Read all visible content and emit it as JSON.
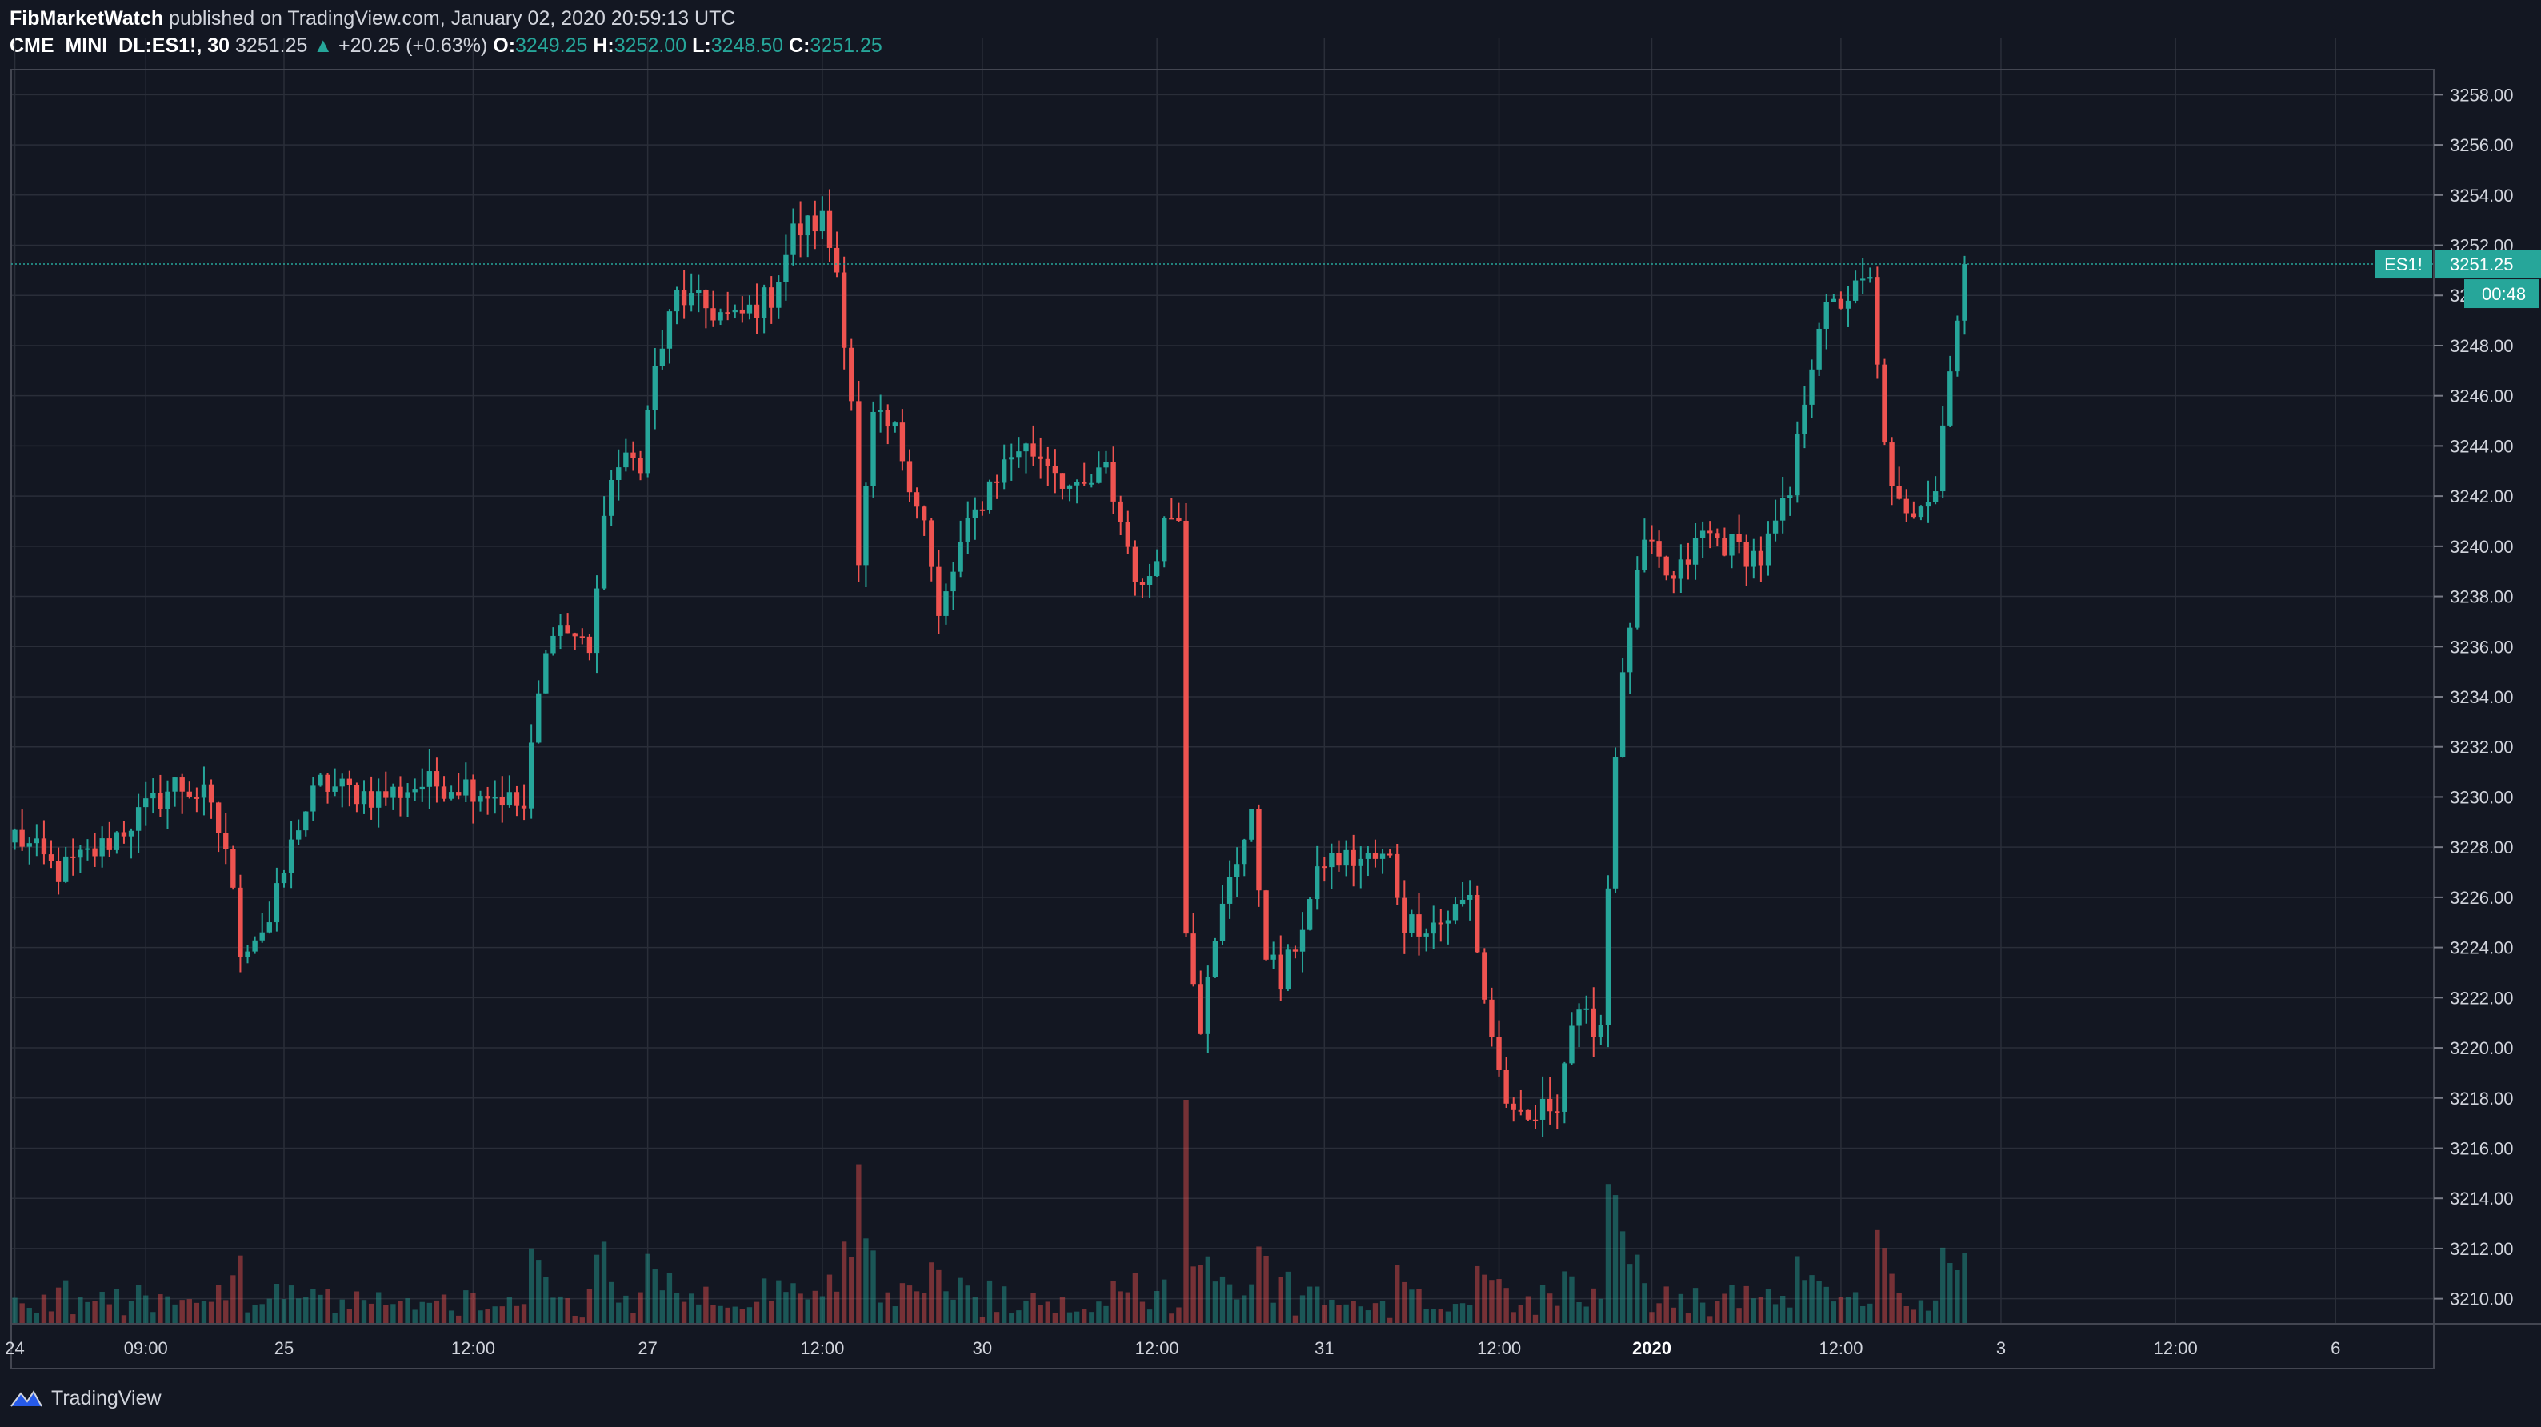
{
  "header": {
    "publisher": "FibMarketWatch",
    "published_text": "published on TradingView.com, January 02, 2020 20:59:13 UTC",
    "symbol": "CME_MINI_DL:ES1!, 30",
    "last": "3251.25",
    "change": "+20.25 (+0.63%)",
    "open_label": "O:",
    "open": "3249.25",
    "high_label": "H:",
    "high": "3252.00",
    "low_label": "L:",
    "low": "3248.50",
    "close_label": "C:",
    "close": "3251.25"
  },
  "footer": {
    "brand": "TradingView"
  },
  "colors": {
    "background": "#131722",
    "up": "#26a69a",
    "down": "#ef5350",
    "grid": "#2a2e39"
  },
  "chart_data": {
    "type": "candlestick",
    "symbol": "ES1!",
    "interval": "30",
    "price_scale": {
      "min": 3209,
      "max": 3259,
      "ticks": [
        "3258.00",
        "3256.00",
        "3254.00",
        "3252.00",
        "3250.00",
        "3248.00",
        "3246.00",
        "3244.00",
        "3242.00",
        "3240.00",
        "3238.00",
        "3236.00",
        "3234.00",
        "3232.00",
        "3230.00",
        "3228.00",
        "3226.00",
        "3224.00",
        "3222.00",
        "3220.00",
        "3218.00",
        "3216.00",
        "3214.00",
        "3212.00",
        "3210.00"
      ]
    },
    "time_ticks": [
      {
        "label": "24",
        "bar": 0
      },
      {
        "label": "09:00",
        "bar": 18
      },
      {
        "label": "25",
        "bar": 37
      },
      {
        "label": "12:00",
        "bar": 63
      },
      {
        "label": "27",
        "bar": 87
      },
      {
        "label": "12:00",
        "bar": 111
      },
      {
        "label": "30",
        "bar": 133
      },
      {
        "label": "12:00",
        "bar": 157
      },
      {
        "label": "31",
        "bar": 180
      },
      {
        "label": "12:00",
        "bar": 204
      },
      {
        "label": "2020",
        "bar": 225
      },
      {
        "label": "12:00",
        "bar": 251
      },
      {
        "label": "3",
        "bar": 273
      },
      {
        "label": "12:00",
        "bar": 297
      },
      {
        "label": "6",
        "bar": 319
      }
    ],
    "total_slots": 333,
    "last_price_label": "3251.25",
    "last_price_symbol": "ES1!",
    "countdown": "00:48",
    "keypoints": [
      [
        0,
        3228.5
      ],
      [
        6,
        3227
      ],
      [
        12,
        3228
      ],
      [
        18,
        3229.5
      ],
      [
        22,
        3230.5
      ],
      [
        26,
        3230
      ],
      [
        29,
        3228
      ],
      [
        31,
        3224
      ],
      [
        35,
        3225
      ],
      [
        39,
        3229
      ],
      [
        42,
        3230.5
      ],
      [
        50,
        3230
      ],
      [
        56,
        3230.5
      ],
      [
        62,
        3230.5
      ],
      [
        67,
        3230
      ],
      [
        70,
        3229.5
      ],
      [
        72,
        3234
      ],
      [
        74,
        3237
      ],
      [
        79,
        3236
      ],
      [
        82,
        3243
      ],
      [
        86,
        3243.5
      ],
      [
        88,
        3247
      ],
      [
        91,
        3250
      ],
      [
        99,
        3249
      ],
      [
        104,
        3250
      ],
      [
        107,
        3252.5
      ],
      [
        111,
        3253
      ],
      [
        113,
        3251
      ],
      [
        115,
        3246
      ],
      [
        116,
        3239
      ],
      [
        118,
        3245
      ],
      [
        121,
        3244.5
      ],
      [
        125,
        3241
      ],
      [
        127,
        3237
      ],
      [
        130,
        3240
      ],
      [
        134,
        3242.5
      ],
      [
        138,
        3244
      ],
      [
        142,
        3243.5
      ],
      [
        146,
        3242
      ],
      [
        150,
        3243
      ],
      [
        153,
        3240
      ],
      [
        155,
        3238
      ],
      [
        158,
        3241
      ],
      [
        160,
        3241.5
      ],
      [
        161,
        3225
      ],
      [
        163,
        3221
      ],
      [
        167,
        3227
      ],
      [
        170,
        3229
      ],
      [
        172,
        3224
      ],
      [
        174,
        3222.5
      ],
      [
        177,
        3225
      ],
      [
        180,
        3227.5
      ],
      [
        185,
        3227.5
      ],
      [
        189,
        3227.5
      ],
      [
        191,
        3225
      ],
      [
        196,
        3225
      ],
      [
        200,
        3226
      ],
      [
        202,
        3222
      ],
      [
        204,
        3219
      ],
      [
        206,
        3217
      ],
      [
        208,
        3217
      ],
      [
        212,
        3218
      ],
      [
        214,
        3221
      ],
      [
        218,
        3221
      ],
      [
        220,
        3232
      ],
      [
        222,
        3237
      ],
      [
        224,
        3240
      ],
      [
        228,
        3238.5
      ],
      [
        232,
        3240.5
      ],
      [
        236,
        3240
      ],
      [
        240,
        3239.5
      ],
      [
        244,
        3242
      ],
      [
        246,
        3246
      ],
      [
        248,
        3249
      ],
      [
        252,
        3250
      ],
      [
        255,
        3250.5
      ],
      [
        256,
        3247
      ],
      [
        258,
        3242
      ],
      [
        260,
        3241
      ],
      [
        262,
        3242
      ],
      [
        264,
        3242.5
      ],
      [
        265,
        3245
      ],
      [
        267,
        3249
      ],
      [
        268,
        3251.25
      ]
    ],
    "bar_count": 269
  }
}
